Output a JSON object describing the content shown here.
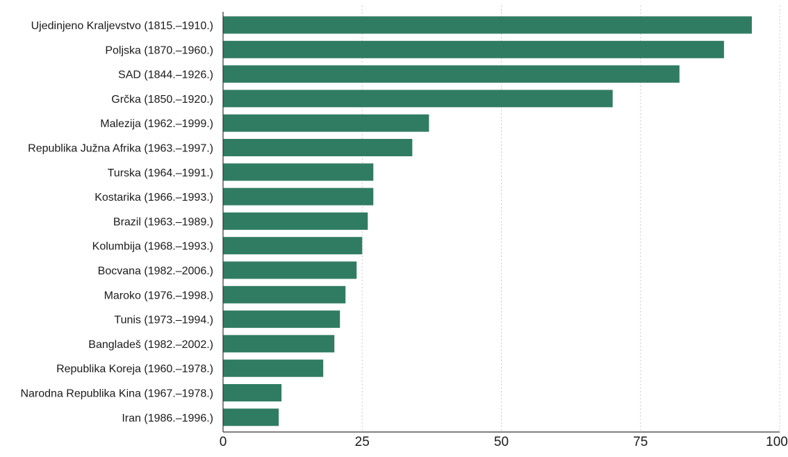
{
  "chart_data": {
    "type": "bar",
    "orientation": "horizontal",
    "categories": [
      "Ujedinjeno Kraljevstvo (1815.–1910.)",
      "Poljska (1870.–1960.)",
      "SAD (1844.–1926.)",
      "Grčka (1850.–1920.)",
      "Malezija (1962.–1999.)",
      "Republika Južna Afrika (1963.–1997.)",
      "Turska (1964.–1991.)",
      "Kostarika (1966.–1993.)",
      "Brazil (1963.–1989.)",
      "Kolumbija (1968.–1993.)",
      "Bocvana (1982.–2006.)",
      "Maroko (1976.–1998.)",
      "Tunis (1973.–1994.)",
      "Bangladeš (1982.–2002.)",
      "Republika Koreja (1960.–1978.)",
      "Narodna Republika Kina (1967.–1978.)",
      "Iran (1986.–1996.)"
    ],
    "values": [
      95,
      90,
      82,
      70,
      37,
      34,
      27,
      27,
      26,
      25,
      24,
      22,
      21,
      20,
      18,
      10.5,
      10
    ],
    "xlim": [
      0,
      100
    ],
    "x_ticks": [
      "0",
      "25",
      "50",
      "75",
      "100"
    ],
    "x_tick_values": [
      0,
      25,
      50,
      75,
      100
    ],
    "grid": "vertical dotted",
    "bar_color": "#307c62",
    "title": "",
    "xlabel": "",
    "ylabel": ""
  }
}
